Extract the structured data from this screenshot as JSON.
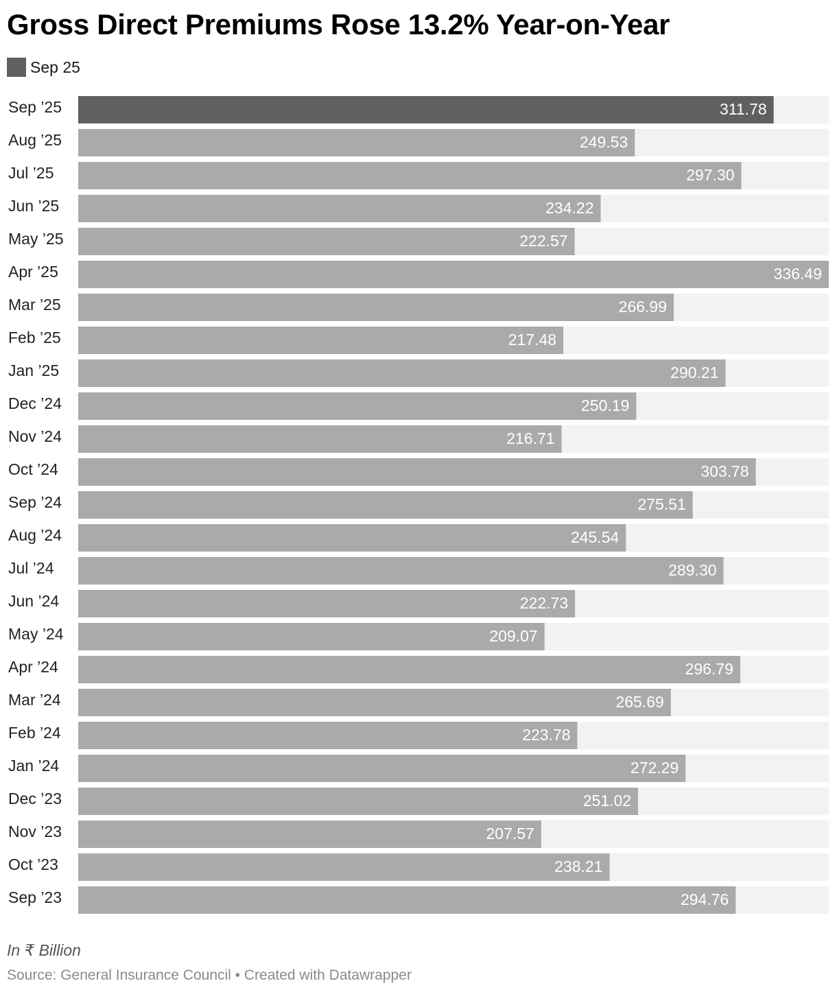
{
  "title": "Gross Direct Premiums Rose 13.2% Year-on-Year",
  "legend": {
    "label": "Sep 25",
    "color": "#606060"
  },
  "note": "In ₹ Billion",
  "source": {
    "label": "Source: General Insurance Council",
    "separator": " • ",
    "credit": "Created with Datawrapper"
  },
  "colors": {
    "highlight": "#606060",
    "bar": "#aaaaaa",
    "track": "#f2f2f2",
    "value_text": "#ffffff"
  },
  "chart_data": {
    "type": "bar",
    "orientation": "horizontal",
    "title": "Gross Direct Premiums Rose 13.2% Year-on-Year",
    "unit": "₹ Billion",
    "xlim": [
      0,
      336.49
    ],
    "highlight_category": "Sep ’25",
    "categories": [
      "Sep ’25",
      "Aug ’25",
      "Jul ’25",
      "Jun ’25",
      "May ’25",
      "Apr ’25",
      "Mar ’25",
      "Feb ’25",
      "Jan ’25",
      "Dec ’24",
      "Nov ’24",
      "Oct ’24",
      "Sep ’24",
      "Aug ’24",
      "Jul ’24",
      "Jun ’24",
      "May ’24",
      "Apr ’24",
      "Mar ’24",
      "Feb ’24",
      "Jan ’24",
      "Dec ’23",
      "Nov ’23",
      "Oct ’23",
      "Sep ’23"
    ],
    "values": [
      311.78,
      249.53,
      297.3,
      234.22,
      222.57,
      336.49,
      266.99,
      217.48,
      290.21,
      250.19,
      216.71,
      303.78,
      275.51,
      245.54,
      289.3,
      222.73,
      209.07,
      296.79,
      265.69,
      223.78,
      272.29,
      251.02,
      207.57,
      238.21,
      294.76
    ],
    "value_labels": [
      "311.78",
      "249.53",
      "297.30",
      "234.22",
      "222.57",
      "336.49",
      "266.99",
      "217.48",
      "290.21",
      "250.19",
      "216.71",
      "303.78",
      "275.51",
      "245.54",
      "289.30",
      "222.73",
      "209.07",
      "296.79",
      "265.69",
      "223.78",
      "272.29",
      "251.02",
      "207.57",
      "238.21",
      "294.76"
    ]
  }
}
